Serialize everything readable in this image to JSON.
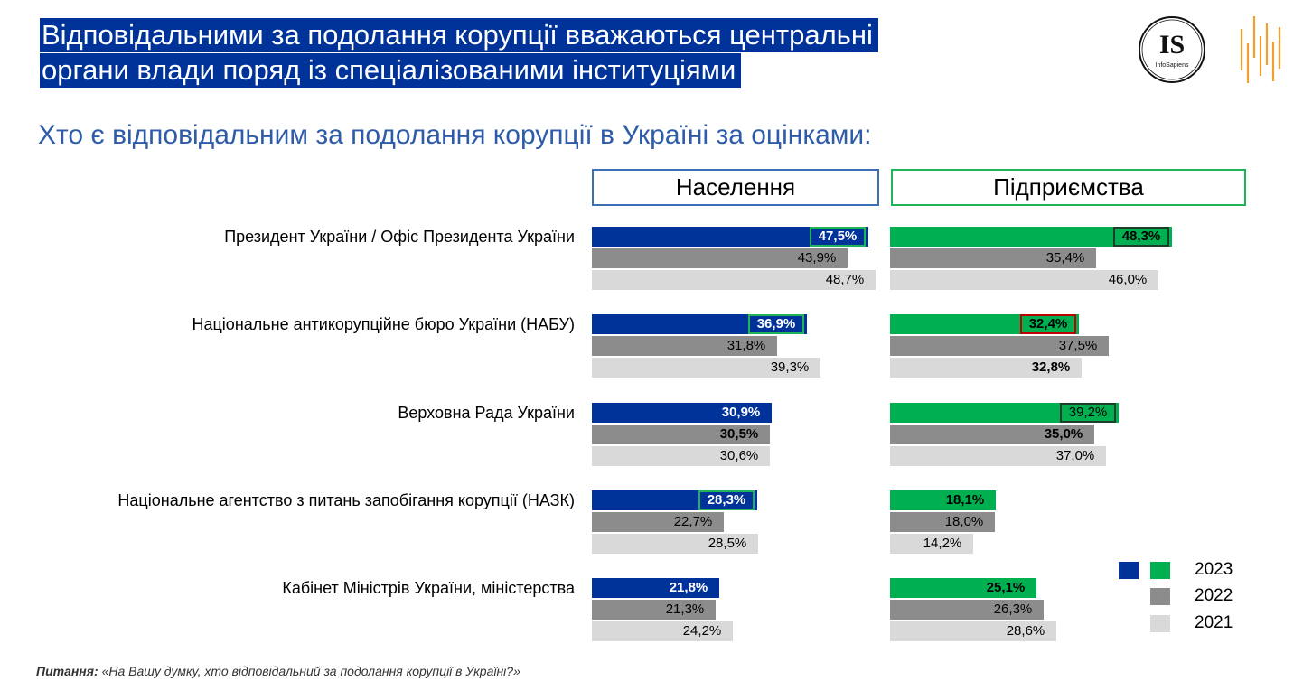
{
  "header": {
    "title_line1": "Відповідальними за подолання корупції вважаються центральні",
    "title_line2": "органи влади поряд із спеціалізованими інституціями",
    "subtitle": "Хто є відповідальним за подолання корупції в Україні за оцінками:"
  },
  "logos": {
    "is_text": "IS",
    "is_caption": "InfoSapiens"
  },
  "footnote": {
    "label": "Питання:",
    "text": " «На Вашу думку, хто відповідальний за подолання корупції в Україні?»"
  },
  "colors": {
    "title_bg": "#003399",
    "pop_2023": "#003399",
    "biz_2023": "#00b050",
    "y2022": "#8c8c8c",
    "y2021": "#d9d9d9",
    "highlight_green": "#1fb458",
    "highlight_dark": "#1e3d2a",
    "highlight_red": "#c00000"
  },
  "chart_data": {
    "type": "bar",
    "orientation": "horizontal",
    "panels": [
      "Населення",
      "Підприємства"
    ],
    "categories": [
      "Президент України / Офіс Президента України",
      "Національне антикорупційне бюро України (НАБУ)",
      "Верховна Рада України",
      "Національне агентство з питань запобігання корупції (НАЗК)",
      "Кабінет Міністрів України, міністерства"
    ],
    "legend": [
      "2023",
      "2022",
      "2021"
    ],
    "series": {
      "Населення": [
        {
          "name": "2023",
          "values": [
            47.5,
            36.9,
            30.9,
            28.3,
            21.8
          ],
          "labels": [
            "47,5%",
            "36,9%",
            "30,9%",
            "28,3%",
            "21,8%"
          ]
        },
        {
          "name": "2022",
          "values": [
            43.9,
            31.8,
            30.5,
            22.7,
            21.3
          ],
          "labels": [
            "43,9%",
            "31,8%",
            "30,5%",
            "22,7%",
            "21,3%"
          ]
        },
        {
          "name": "2021",
          "values": [
            48.7,
            39.3,
            30.6,
            28.5,
            24.2
          ],
          "labels": [
            "48,7%",
            "39,3%",
            "30,6%",
            "28,5%",
            "24,2%"
          ]
        }
      ],
      "Підприємства": [
        {
          "name": "2023",
          "values": [
            48.3,
            32.4,
            39.2,
            18.1,
            25.1
          ],
          "labels": [
            "48,3%",
            "32,4%",
            "39,2%",
            "18,1%",
            "25,1%"
          ]
        },
        {
          "name": "2022",
          "values": [
            35.4,
            37.5,
            35.0,
            18.0,
            26.3
          ],
          "labels": [
            "35,4%",
            "37,5%",
            "35,0%",
            "18,0%",
            "26,3%"
          ]
        },
        {
          "name": "2021",
          "values": [
            46.0,
            32.8,
            37.0,
            14.2,
            28.6
          ],
          "labels": [
            "46,0%",
            "32,8%",
            "37,0%",
            "14,2%",
            "28,6%"
          ]
        }
      ]
    },
    "bold_labels": {
      "Населення": [
        [
          true,
          false,
          false
        ],
        [
          true,
          false,
          false
        ],
        [
          true,
          true,
          false
        ],
        [
          true,
          false,
          false
        ],
        [
          true,
          false,
          false
        ]
      ],
      "Підприємства": [
        [
          true,
          false,
          false
        ],
        [
          true,
          false,
          true
        ],
        [
          false,
          true,
          false
        ],
        [
          true,
          false,
          false
        ],
        [
          true,
          false,
          false
        ]
      ]
    },
    "highlight_boxes": {
      "Населення": [
        "green",
        "green",
        "none",
        "green",
        "none"
      ],
      "Підприємства": [
        "dark",
        "red",
        "dark",
        "none",
        "none"
      ]
    }
  }
}
